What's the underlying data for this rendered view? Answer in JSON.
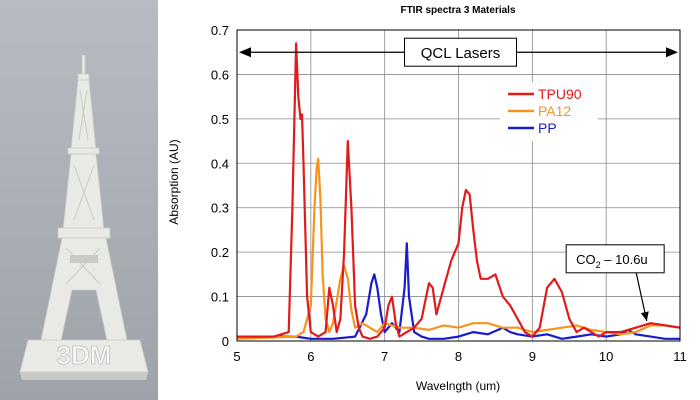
{
  "photo": {
    "label": "3DM",
    "colors": {
      "bg_top": "#b8bcc2",
      "bg_bottom": "#9ea3aa",
      "model": "#e9e9e6",
      "shade": "#c9cac6"
    }
  },
  "chart_data": {
    "type": "line",
    "title": "FTIR spectra 3 Materials",
    "xlabel": "Wavelngth (um)",
    "ylabel": "Absorption (AU)",
    "xlim": [
      5,
      11
    ],
    "ylim": [
      0,
      0.7
    ],
    "xticks": [
      5,
      6,
      7,
      8,
      9,
      10,
      11
    ],
    "yticks": [
      0,
      0.1,
      0.2,
      0.3,
      0.4,
      0.5,
      0.6,
      0.7
    ],
    "xtick_labels": [
      "5",
      "6",
      "7",
      "8",
      "9",
      "10",
      "11"
    ],
    "ytick_labels": [
      "0",
      "0.1",
      "0.2",
      "0.3",
      "0.4",
      "0.5",
      "0.6",
      "0.7"
    ],
    "grid": true,
    "legend_position": "top-right",
    "series": [
      {
        "name": "TPU90",
        "color": "#e11b1b",
        "x": [
          5.0,
          5.5,
          5.7,
          5.75,
          5.8,
          5.83,
          5.86,
          5.88,
          5.9,
          5.95,
          6.0,
          6.1,
          6.2,
          6.25,
          6.3,
          6.35,
          6.4,
          6.45,
          6.5,
          6.55,
          6.6,
          6.65,
          6.7,
          6.8,
          6.9,
          7.0,
          7.05,
          7.1,
          7.15,
          7.2,
          7.3,
          7.4,
          7.5,
          7.6,
          7.65,
          7.7,
          7.8,
          7.9,
          7.95,
          8.0,
          8.05,
          8.1,
          8.15,
          8.2,
          8.25,
          8.3,
          8.4,
          8.5,
          8.6,
          8.7,
          8.8,
          8.9,
          9.0,
          9.1,
          9.2,
          9.3,
          9.4,
          9.5,
          9.6,
          9.7,
          9.8,
          9.9,
          10.0,
          10.2,
          10.4,
          10.6,
          10.8,
          11.0
        ],
        "y": [
          0.01,
          0.01,
          0.02,
          0.3,
          0.67,
          0.55,
          0.5,
          0.51,
          0.4,
          0.1,
          0.02,
          0.01,
          0.02,
          0.12,
          0.08,
          0.02,
          0.05,
          0.2,
          0.45,
          0.3,
          0.08,
          0.03,
          0.01,
          0.005,
          0.01,
          0.03,
          0.08,
          0.1,
          0.04,
          0.01,
          0.02,
          0.03,
          0.05,
          0.13,
          0.12,
          0.06,
          0.12,
          0.18,
          0.2,
          0.22,
          0.3,
          0.34,
          0.33,
          0.25,
          0.18,
          0.14,
          0.14,
          0.15,
          0.1,
          0.08,
          0.05,
          0.02,
          0.01,
          0.03,
          0.12,
          0.14,
          0.11,
          0.05,
          0.02,
          0.03,
          0.02,
          0.01,
          0.02,
          0.02,
          0.03,
          0.04,
          0.035,
          0.03
        ]
      },
      {
        "name": "PA12",
        "color": "#f7941d",
        "x": [
          5.0,
          5.8,
          5.9,
          6.0,
          6.05,
          6.08,
          6.1,
          6.13,
          6.16,
          6.2,
          6.25,
          6.3,
          6.4,
          6.45,
          6.5,
          6.55,
          6.6,
          6.7,
          6.8,
          6.9,
          7.0,
          7.2,
          7.4,
          7.6,
          7.8,
          8.0,
          8.2,
          8.4,
          8.6,
          8.8,
          9.0,
          9.2,
          9.4,
          9.6,
          9.8,
          10.0,
          10.2,
          10.4,
          10.6,
          10.8,
          11.0
        ],
        "y": [
          0.005,
          0.01,
          0.02,
          0.08,
          0.3,
          0.39,
          0.41,
          0.32,
          0.15,
          0.05,
          0.02,
          0.04,
          0.14,
          0.17,
          0.14,
          0.07,
          0.03,
          0.04,
          0.03,
          0.02,
          0.04,
          0.03,
          0.03,
          0.025,
          0.035,
          0.03,
          0.04,
          0.04,
          0.03,
          0.03,
          0.02,
          0.025,
          0.03,
          0.035,
          0.025,
          0.02,
          0.015,
          0.02,
          0.035,
          0.035,
          0.03
        ]
      },
      {
        "name": "PP",
        "color": "#1a1acf",
        "x": [
          5.0,
          5.6,
          5.8,
          6.0,
          6.3,
          6.6,
          6.75,
          6.82,
          6.86,
          6.9,
          6.95,
          7.0,
          7.1,
          7.2,
          7.27,
          7.3,
          7.33,
          7.4,
          7.5,
          7.6,
          7.8,
          8.0,
          8.2,
          8.4,
          8.6,
          8.7,
          8.8,
          9.0,
          9.2,
          9.4,
          9.6,
          9.8,
          10.0,
          10.2,
          10.3,
          10.4,
          10.6,
          10.8,
          11.0
        ],
        "y": [
          0.01,
          0.01,
          0.01,
          0.005,
          0.005,
          0.01,
          0.06,
          0.13,
          0.15,
          0.12,
          0.06,
          0.02,
          0.04,
          0.02,
          0.12,
          0.22,
          0.1,
          0.02,
          0.01,
          0.005,
          0.005,
          0.01,
          0.02,
          0.015,
          0.03,
          0.02,
          0.015,
          0.01,
          0.015,
          0.005,
          0.01,
          0.015,
          0.01,
          0.015,
          0.025,
          0.015,
          0.01,
          0.005,
          0.005
        ]
      }
    ],
    "annotations": [
      {
        "id": "qcl",
        "text": "QCL Lasers",
        "x_start": 5,
        "x_end": 11,
        "y": 0.65
      },
      {
        "id": "co2",
        "text_main": "CO",
        "text_sub": "2",
        "text_tail": " – 10.6u",
        "x": 10.0,
        "y": 0.185,
        "arrow_to_x": 10.55,
        "arrow_to_y": 0.045
      }
    ]
  }
}
